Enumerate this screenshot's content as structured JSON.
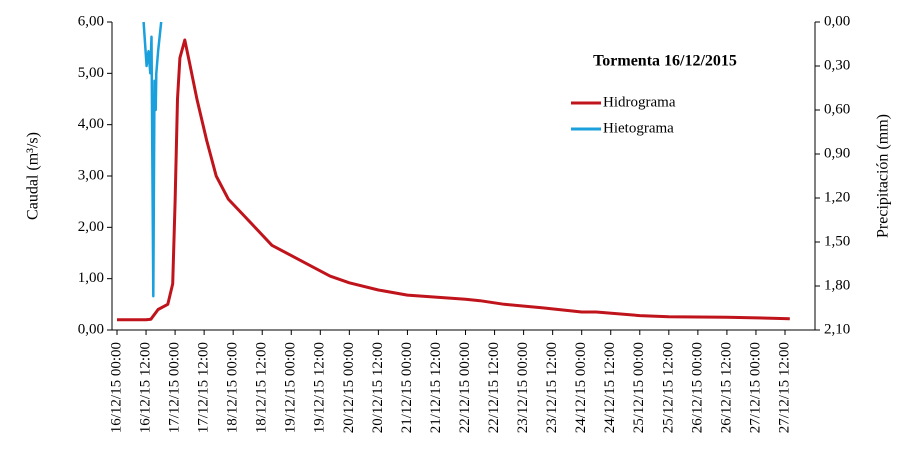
{
  "chart_data": {
    "type": "line",
    "title": "Tormenta 16/12/2015",
    "ylabel": "Caudal (m³/s)",
    "y2label": "Precipitación (mm)",
    "xticks": [
      "16/12/15 00:00",
      "16/12/15 12:00",
      "17/12/15 00:00",
      "17/12/15 12:00",
      "18/12/15 00:00",
      "18/12/15 12:00",
      "19/12/15 00:00",
      "19/12/15 12:00",
      "20/12/15 00:00",
      "20/12/15 12:00",
      "21/12/15 00:00",
      "21/12/15 12:00",
      "22/12/15 00:00",
      "22/12/15 12:00",
      "23/12/15 00:00",
      "23/12/15 12:00",
      "24/12/15 00:00",
      "24/12/15 12:00",
      "25/12/15 00:00",
      "25/12/15 12:00",
      "26/12/15 00:00",
      "26/12/15 12:00",
      "27/12/15 00:00",
      "27/12/15 12:00"
    ],
    "ylim": [
      0,
      6
    ],
    "yticks": [
      {
        "value": 0,
        "label": "0,00"
      },
      {
        "value": 1,
        "label": "1,00"
      },
      {
        "value": 2,
        "label": "2,00"
      },
      {
        "value": 3,
        "label": "3,00"
      },
      {
        "value": 4,
        "label": "4,00"
      },
      {
        "value": 5,
        "label": "5,00"
      },
      {
        "value": 6,
        "label": "6,00"
      }
    ],
    "y2lim": [
      2.1,
      0
    ],
    "y2ticks": [
      {
        "value": 0,
        "label": "0,00"
      },
      {
        "value": 0.3,
        "label": "0,30"
      },
      {
        "value": 0.6,
        "label": "0,60"
      },
      {
        "value": 0.9,
        "label": "0,90"
      },
      {
        "value": 1.2,
        "label": "1,20"
      },
      {
        "value": 1.5,
        "label": "1,50"
      },
      {
        "value": 1.8,
        "label": "1,80"
      },
      {
        "value": 2.1,
        "label": "2,10"
      }
    ],
    "series": [
      {
        "name": "Hidrograma",
        "color": "#c0141c",
        "x": [
          "16/12/15 00:00",
          "16/12/15 12:00",
          "16/12/15 14:00",
          "16/12/15 17:00",
          "16/12/15 21:00",
          "16/12/15 23:00",
          "17/12/15 00:00",
          "17/12/15 01:00",
          "17/12/15 02:00",
          "17/12/15 04:00",
          "17/12/15 06:00",
          "17/12/15 09:00",
          "17/12/15 13:00",
          "17/12/15 17:00",
          "17/12/15 22:00",
          "18/12/15 04:00",
          "18/12/15 10:00",
          "18/12/15 16:00",
          "19/12/15 00:00",
          "19/12/15 08:00",
          "19/12/15 16:00",
          "20/12/15 00:00",
          "20/12/15 12:00",
          "21/12/15 00:00",
          "22/12/15 00:00",
          "22/12/15 06:00",
          "22/12/15 16:00",
          "23/12/15 08:00",
          "24/12/15 00:00",
          "24/12/15 06:00",
          "25/12/15 00:00",
          "25/12/15 12:00",
          "26/12/15 12:00",
          "27/12/15 14:00"
        ],
        "values": [
          0.2,
          0.2,
          0.21,
          0.4,
          0.5,
          0.9,
          2.5,
          4.5,
          5.3,
          5.65,
          5.2,
          4.5,
          3.7,
          3.0,
          2.55,
          2.25,
          1.95,
          1.65,
          1.45,
          1.25,
          1.05,
          0.92,
          0.78,
          0.68,
          0.6,
          0.57,
          0.5,
          0.43,
          0.35,
          0.35,
          0.28,
          0.26,
          0.25,
          0.22
        ]
      },
      {
        "name": "Hietograma",
        "color": "#1aa0dc",
        "axis": "y2",
        "x": [
          "16/12/15 11:00",
          "16/12/15 12:15",
          "16/12/15 13:00",
          "16/12/15 13:45",
          "16/12/15 14:15",
          "16/12/15 15:00",
          "16/12/15 15:30",
          "16/12/15 16:00",
          "16/12/15 16:15",
          "16/12/15 17:00",
          "16/12/15 18:15"
        ],
        "values": [
          0,
          0.3,
          0.2,
          0.35,
          0.1,
          1.87,
          0.4,
          0.6,
          0.35,
          0.2,
          0
        ]
      }
    ]
  }
}
